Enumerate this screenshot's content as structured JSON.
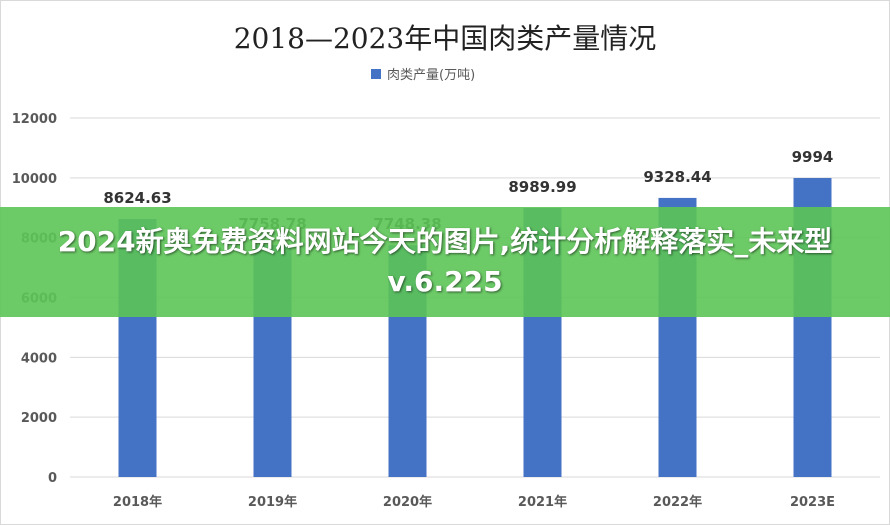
{
  "overlay": {
    "banner_text": "2024新奥免费资料网站今天的图片,统计分析解释落实_未来型v.6.225"
  },
  "colors": {
    "bar": "#4472c4",
    "grid": "#d9d9d9",
    "axis_text": "#595959",
    "label_text": "#333333",
    "banner": "#5cc456"
  },
  "chart_data": {
    "type": "bar",
    "title": "2018—2023年中国肉类产量情况",
    "categories": [
      "2018年",
      "2019年",
      "2020年",
      "2021年",
      "2022年",
      "2023E"
    ],
    "series": [
      {
        "name": "肉类产量(万吨)",
        "values": [
          8624.63,
          7758.78,
          7748.38,
          8989.99,
          9328.44,
          9994
        ],
        "labels": [
          "8624.63",
          "7758.78",
          "7748.38",
          "8989.99",
          "9328.44",
          "9994"
        ]
      }
    ],
    "yticks": [
      "0",
      "2000",
      "4000",
      "6000",
      "8000",
      "10000",
      "12000"
    ],
    "ylim": [
      0,
      12000
    ],
    "grid": true,
    "legend": "top-center"
  }
}
